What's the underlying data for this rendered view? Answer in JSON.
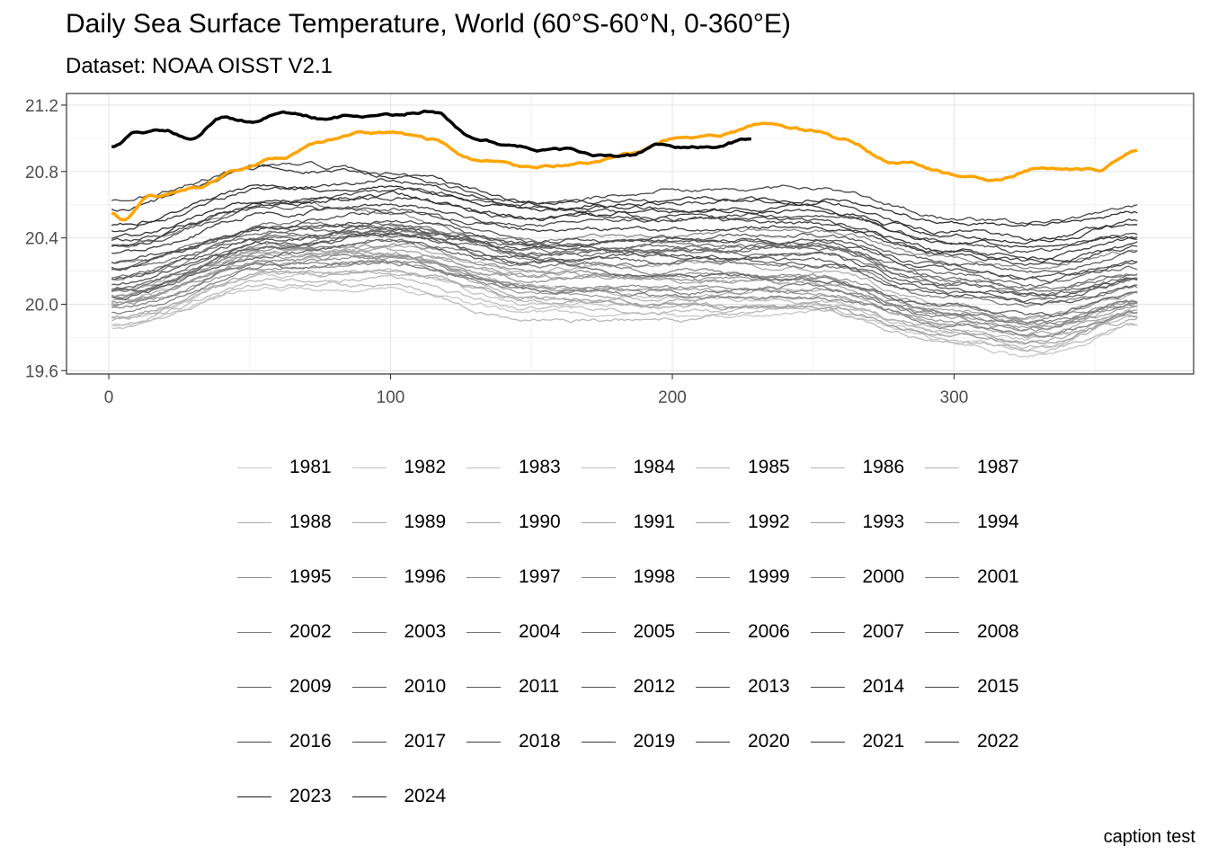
{
  "chart_data": {
    "type": "line",
    "title": "Daily Sea Surface Temperature, World (60°S-60°N, 0-360°E)",
    "subtitle": "Dataset: NOAA OISST V2.1",
    "caption": "caption test",
    "xlabel": "",
    "ylabel": "",
    "xlim": [
      -15,
      385
    ],
    "ylim": [
      19.58,
      21.27
    ],
    "x_ticks": [
      0,
      100,
      200,
      300
    ],
    "y_ticks": [
      19.6,
      20.0,
      20.4,
      20.8,
      21.2
    ],
    "x_tick_labels": [
      "0",
      "100",
      "200",
      "300"
    ],
    "y_tick_labels": [
      "19.6",
      "20.0",
      "20.4",
      "20.8",
      "21.2"
    ],
    "grid": true,
    "legend_position": "bottom",
    "colors": {
      "highlight_2023": "#FFA500",
      "highlight_2024": "#000000",
      "old_years": "#C8C8C8",
      "recent_years": "#2E2E2E"
    },
    "series": [
      {
        "name": "1981",
        "x": [
          1,
          60,
          100,
          150,
          200,
          250,
          300,
          330,
          365
        ],
        "values": [
          19.88,
          20.1,
          20.08,
          19.95,
          19.92,
          19.95,
          19.78,
          19.7,
          19.86
        ]
      },
      {
        "name": "1982",
        "x": [
          1,
          60,
          100,
          150,
          200,
          250,
          300,
          330,
          365
        ],
        "values": [
          19.92,
          20.18,
          20.2,
          20.0,
          20.0,
          19.98,
          19.8,
          19.75,
          19.92
        ]
      },
      {
        "name": "1983",
        "x": [
          1,
          60,
          100,
          150,
          200,
          250,
          300,
          330,
          365
        ],
        "values": [
          20.05,
          20.32,
          20.3,
          20.12,
          20.05,
          20.02,
          19.85,
          19.8,
          19.95
        ]
      },
      {
        "name": "1984",
        "x": [
          1,
          60,
          100,
          150,
          200,
          250,
          300,
          330,
          365
        ],
        "values": [
          19.86,
          20.12,
          20.15,
          19.98,
          19.95,
          19.98,
          19.82,
          19.75,
          19.9
        ]
      },
      {
        "name": "1985",
        "x": [
          1,
          60,
          100,
          150,
          200,
          250,
          300,
          330,
          365
        ],
        "values": [
          19.88,
          20.15,
          20.1,
          19.9,
          19.9,
          19.95,
          19.78,
          19.72,
          19.88
        ]
      },
      {
        "name": "1986",
        "x": [
          1,
          60,
          100,
          150,
          200,
          250,
          300,
          330,
          365
        ],
        "values": [
          19.9,
          20.18,
          20.2,
          20.02,
          20.05,
          20.1,
          19.9,
          19.82,
          19.96
        ]
      },
      {
        "name": "1987",
        "x": [
          1,
          60,
          100,
          150,
          200,
          250,
          300,
          330,
          365
        ],
        "values": [
          20.02,
          20.28,
          20.35,
          20.22,
          20.25,
          20.22,
          20.0,
          19.92,
          20.05
        ]
      },
      {
        "name": "1988",
        "x": [
          1,
          60,
          100,
          150,
          200,
          250,
          300,
          330,
          365
        ],
        "values": [
          20.08,
          20.35,
          20.3,
          20.05,
          19.98,
          20.0,
          19.85,
          19.78,
          19.9
        ]
      },
      {
        "name": "1989",
        "x": [
          1,
          60,
          100,
          150,
          200,
          250,
          300,
          330,
          365
        ],
        "values": [
          19.92,
          20.18,
          20.2,
          20.05,
          20.02,
          20.05,
          19.88,
          19.82,
          19.96
        ]
      },
      {
        "name": "1990",
        "x": [
          1,
          60,
          100,
          150,
          200,
          250,
          300,
          330,
          365
        ],
        "values": [
          20.0,
          20.3,
          20.32,
          20.18,
          20.15,
          20.12,
          19.95,
          19.88,
          20.0
        ]
      },
      {
        "name": "1991",
        "x": [
          1,
          60,
          100,
          150,
          200,
          250,
          300,
          330,
          365
        ],
        "values": [
          20.05,
          20.32,
          20.3,
          20.18,
          20.15,
          20.12,
          19.92,
          19.86,
          19.98
        ]
      },
      {
        "name": "1992",
        "x": [
          1,
          60,
          100,
          150,
          200,
          250,
          300,
          330,
          365
        ],
        "values": [
          20.08,
          20.3,
          20.28,
          20.08,
          20.0,
          19.98,
          19.82,
          19.78,
          19.92
        ]
      },
      {
        "name": "1993",
        "x": [
          1,
          60,
          100,
          150,
          200,
          250,
          300,
          330,
          365
        ],
        "values": [
          20.0,
          20.22,
          20.25,
          20.1,
          20.08,
          20.08,
          19.9,
          19.85,
          20.0
        ]
      },
      {
        "name": "1994",
        "x": [
          1,
          60,
          100,
          150,
          200,
          250,
          300,
          330,
          365
        ],
        "values": [
          20.02,
          20.28,
          20.3,
          20.15,
          20.18,
          20.18,
          19.98,
          19.92,
          20.05
        ]
      },
      {
        "name": "1995",
        "x": [
          1,
          60,
          100,
          150,
          200,
          250,
          300,
          330,
          365
        ],
        "values": [
          20.05,
          20.32,
          20.35,
          20.2,
          20.15,
          20.15,
          19.95,
          19.9,
          20.02
        ]
      },
      {
        "name": "1996",
        "x": [
          1,
          60,
          100,
          150,
          200,
          250,
          300,
          330,
          365
        ],
        "values": [
          20.0,
          20.25,
          20.28,
          20.12,
          20.1,
          20.1,
          19.92,
          19.86,
          20.0
        ]
      },
      {
        "name": "1997",
        "x": [
          1,
          60,
          100,
          150,
          200,
          250,
          300,
          330,
          365
        ],
        "values": [
          20.05,
          20.35,
          20.45,
          20.38,
          20.42,
          20.45,
          20.28,
          20.22,
          20.32
        ]
      },
      {
        "name": "1998",
        "x": [
          1,
          60,
          100,
          150,
          200,
          250,
          300,
          330,
          365
        ],
        "values": [
          20.35,
          20.6,
          20.55,
          20.3,
          20.2,
          20.15,
          19.95,
          19.88,
          20.0
        ]
      },
      {
        "name": "1999",
        "x": [
          1,
          60,
          100,
          150,
          200,
          250,
          300,
          330,
          365
        ],
        "values": [
          19.98,
          20.25,
          20.25,
          20.08,
          20.05,
          20.05,
          19.88,
          19.82,
          19.95
        ]
      },
      {
        "name": "2000",
        "x": [
          1,
          60,
          100,
          150,
          200,
          250,
          300,
          330,
          365
        ],
        "values": [
          19.95,
          20.22,
          20.25,
          20.1,
          20.08,
          20.1,
          19.92,
          19.88,
          20.0
        ]
      },
      {
        "name": "2001",
        "x": [
          1,
          60,
          100,
          150,
          200,
          250,
          300,
          330,
          365
        ],
        "values": [
          20.08,
          20.35,
          20.4,
          20.25,
          20.25,
          20.25,
          20.05,
          20.0,
          20.1
        ]
      },
      {
        "name": "2002",
        "x": [
          1,
          60,
          100,
          150,
          200,
          250,
          300,
          330,
          365
        ],
        "values": [
          20.15,
          20.42,
          20.45,
          20.32,
          20.35,
          20.35,
          20.15,
          20.08,
          20.18
        ]
      },
      {
        "name": "2003",
        "x": [
          1,
          60,
          100,
          150,
          200,
          250,
          300,
          330,
          365
        ],
        "values": [
          20.25,
          20.48,
          20.48,
          20.32,
          20.32,
          20.3,
          20.12,
          20.05,
          20.15
        ]
      },
      {
        "name": "2004",
        "x": [
          1,
          60,
          100,
          150,
          200,
          250,
          300,
          330,
          365
        ],
        "values": [
          20.15,
          20.42,
          20.45,
          20.3,
          20.32,
          20.35,
          20.15,
          20.08,
          20.18
        ]
      },
      {
        "name": "2005",
        "x": [
          1,
          60,
          100,
          150,
          200,
          250,
          300,
          330,
          365
        ],
        "values": [
          20.2,
          20.45,
          20.48,
          20.35,
          20.35,
          20.32,
          20.12,
          20.05,
          20.15
        ]
      },
      {
        "name": "2006",
        "x": [
          1,
          60,
          100,
          150,
          200,
          250,
          300,
          330,
          365
        ],
        "values": [
          20.1,
          20.38,
          20.42,
          20.3,
          20.32,
          20.35,
          20.18,
          20.12,
          20.22
        ]
      },
      {
        "name": "2007",
        "x": [
          1,
          60,
          100,
          150,
          200,
          250,
          300,
          330,
          365
        ],
        "values": [
          20.22,
          20.45,
          20.42,
          20.25,
          20.18,
          20.15,
          19.98,
          19.92,
          20.05
        ]
      },
      {
        "name": "2008",
        "x": [
          1,
          60,
          100,
          150,
          200,
          250,
          300,
          330,
          365
        ],
        "values": [
          20.05,
          20.32,
          20.38,
          20.25,
          20.25,
          20.25,
          20.08,
          20.02,
          20.12
        ]
      },
      {
        "name": "2009",
        "x": [
          1,
          60,
          100,
          150,
          200,
          250,
          300,
          330,
          365
        ],
        "values": [
          20.08,
          20.35,
          20.42,
          20.35,
          20.4,
          20.42,
          20.25,
          20.2,
          20.3
        ]
      },
      {
        "name": "2010",
        "x": [
          1,
          60,
          100,
          150,
          200,
          250,
          300,
          330,
          365
        ],
        "values": [
          20.35,
          20.58,
          20.58,
          20.38,
          20.3,
          20.25,
          20.05,
          20.0,
          20.1
        ]
      },
      {
        "name": "2011",
        "x": [
          1,
          60,
          100,
          150,
          200,
          250,
          300,
          330,
          365
        ],
        "values": [
          20.12,
          20.38,
          20.42,
          20.28,
          20.28,
          20.28,
          20.1,
          20.05,
          20.15
        ]
      },
      {
        "name": "2012",
        "x": [
          1,
          60,
          100,
          150,
          200,
          250,
          300,
          330,
          365
        ],
        "values": [
          20.15,
          20.4,
          20.45,
          20.35,
          20.38,
          20.4,
          20.22,
          20.15,
          20.25
        ]
      },
      {
        "name": "2013",
        "x": [
          1,
          60,
          100,
          150,
          200,
          250,
          300,
          330,
          365
        ],
        "values": [
          20.25,
          20.48,
          20.5,
          20.38,
          20.38,
          20.38,
          20.2,
          20.15,
          20.25
        ]
      },
      {
        "name": "2014",
        "x": [
          1,
          60,
          100,
          150,
          200,
          250,
          300,
          330,
          365
        ],
        "values": [
          20.22,
          20.48,
          20.55,
          20.48,
          20.52,
          20.55,
          20.38,
          20.32,
          20.42
        ]
      },
      {
        "name": "2015",
        "x": [
          1,
          60,
          100,
          150,
          200,
          250,
          300,
          330,
          365
        ],
        "values": [
          20.38,
          20.62,
          20.68,
          20.62,
          20.68,
          20.7,
          20.52,
          20.48,
          20.58
        ]
      },
      {
        "name": "2016",
        "x": [
          1,
          60,
          100,
          150,
          200,
          250,
          300,
          330,
          365
        ],
        "values": [
          20.62,
          20.85,
          20.8,
          20.6,
          20.52,
          20.48,
          20.3,
          20.25,
          20.35
        ]
      },
      {
        "name": "2017",
        "x": [
          1,
          60,
          100,
          150,
          200,
          250,
          300,
          330,
          365
        ],
        "values": [
          20.35,
          20.62,
          20.65,
          20.52,
          20.52,
          20.5,
          20.32,
          20.25,
          20.35
        ]
      },
      {
        "name": "2018",
        "x": [
          1,
          60,
          100,
          150,
          200,
          250,
          300,
          330,
          365
        ],
        "values": [
          20.3,
          20.55,
          20.6,
          20.45,
          20.45,
          20.48,
          20.32,
          20.28,
          20.38
        ]
      },
      {
        "name": "2019",
        "x": [
          1,
          60,
          100,
          150,
          200,
          250,
          300,
          330,
          365
        ],
        "values": [
          20.45,
          20.7,
          20.75,
          20.62,
          20.62,
          20.62,
          20.45,
          20.4,
          20.5
        ]
      },
      {
        "name": "2020",
        "x": [
          1,
          60,
          100,
          150,
          200,
          250,
          300,
          330,
          365
        ],
        "values": [
          20.58,
          20.82,
          20.78,
          20.62,
          20.58,
          20.55,
          20.38,
          20.32,
          20.4
        ]
      },
      {
        "name": "2021",
        "x": [
          1,
          60,
          100,
          150,
          200,
          250,
          300,
          330,
          365
        ],
        "values": [
          20.4,
          20.62,
          20.65,
          20.52,
          20.55,
          20.58,
          20.42,
          20.38,
          20.48
        ]
      },
      {
        "name": "2022",
        "x": [
          1,
          60,
          100,
          150,
          200,
          250,
          300,
          330,
          365
        ],
        "values": [
          20.48,
          20.7,
          20.7,
          20.58,
          20.62,
          20.65,
          20.5,
          20.48,
          20.55
        ]
      },
      {
        "name": "2023",
        "x": [
          1,
          5,
          15,
          30,
          45,
          60,
          75,
          90,
          100,
          115,
          130,
          150,
          170,
          185,
          200,
          215,
          235,
          250,
          260,
          280,
          300,
          315,
          330,
          350,
          365
        ],
        "values": [
          20.55,
          20.52,
          20.65,
          20.7,
          20.8,
          20.87,
          20.98,
          21.03,
          21.03,
          20.98,
          20.88,
          20.83,
          20.86,
          20.9,
          21.0,
          21.02,
          21.09,
          21.05,
          21.0,
          20.86,
          20.78,
          20.75,
          20.82,
          20.8,
          20.92
        ]
      },
      {
        "name": "2024",
        "x": [
          1,
          10,
          20,
          30,
          40,
          50,
          62,
          75,
          90,
          100,
          115,
          130,
          145,
          160,
          175,
          185,
          195,
          205,
          215,
          228
        ],
        "values": [
          20.95,
          21.03,
          21.05,
          21.0,
          21.12,
          21.1,
          21.16,
          21.12,
          21.14,
          21.13,
          21.17,
          21.0,
          20.95,
          20.93,
          20.9,
          20.9,
          20.96,
          20.95,
          20.96,
          21.0
        ]
      }
    ]
  }
}
